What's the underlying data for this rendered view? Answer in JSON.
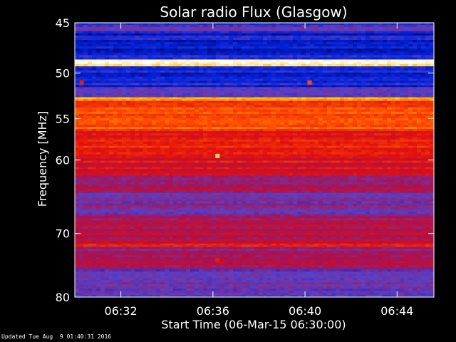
{
  "chart_data": {
    "type": "heatmap",
    "title": "Solar radio Flux (Glasgow)",
    "xlabel": "Start Time (06-Mar-15 06:30:00)",
    "ylabel": "Frequency [MHz]",
    "x_range_minutes": [
      0,
      15.6
    ],
    "x_ticks": [
      {
        "label": "06:32",
        "minute": 2
      },
      {
        "label": "06:36",
        "minute": 6
      },
      {
        "label": "06:40",
        "minute": 10
      },
      {
        "label": "06:44",
        "minute": 14
      }
    ],
    "ylim": [
      45,
      80
    ],
    "y_scale": "log",
    "y_ticks": [
      45,
      50,
      55,
      60,
      70,
      80
    ],
    "colormap": [
      "#000055",
      "#0022dd",
      "#6040c0",
      "#aa1050",
      "#e01010",
      "#ff5000",
      "#ffc000",
      "#ffffff"
    ],
    "bands": [
      {
        "f0": 45.0,
        "f1": 45.8,
        "level": 0.25
      },
      {
        "f0": 45.8,
        "f1": 48.6,
        "level": 0.15
      },
      {
        "f0": 48.6,
        "f1": 49.3,
        "level": 0.97
      },
      {
        "f0": 49.3,
        "f1": 51.5,
        "level": 0.17
      },
      {
        "f0": 51.5,
        "f1": 52.6,
        "level": 0.3
      },
      {
        "f0": 52.6,
        "f1": 53.0,
        "level": 0.85
      },
      {
        "f0": 53.0,
        "f1": 56.5,
        "level": 0.7
      },
      {
        "f0": 56.5,
        "f1": 58.5,
        "level": 0.6
      },
      {
        "f0": 58.5,
        "f1": 62.0,
        "level": 0.55
      },
      {
        "f0": 62.0,
        "f1": 64.0,
        "level": 0.42
      },
      {
        "f0": 64.0,
        "f1": 67.5,
        "level": 0.33
      },
      {
        "f0": 67.5,
        "f1": 71.5,
        "level": 0.45
      },
      {
        "f0": 71.5,
        "f1": 72.0,
        "level": 0.62
      },
      {
        "f0": 72.0,
        "f1": 75.5,
        "level": 0.42
      },
      {
        "f0": 75.5,
        "f1": 80.0,
        "level": 0.3
      }
    ],
    "bursts": [
      {
        "minute": 6.2,
        "freq": 59.5,
        "level": 0.9
      },
      {
        "minute": 6.2,
        "freq": 74.0,
        "level": 0.6
      },
      {
        "minute": 10.2,
        "freq": 51.0,
        "level": 0.7
      },
      {
        "minute": 0.3,
        "freq": 51.0,
        "level": 0.6
      }
    ]
  },
  "footer": {
    "updated": "Updated Tue Aug  9 01:40:31 2016"
  }
}
